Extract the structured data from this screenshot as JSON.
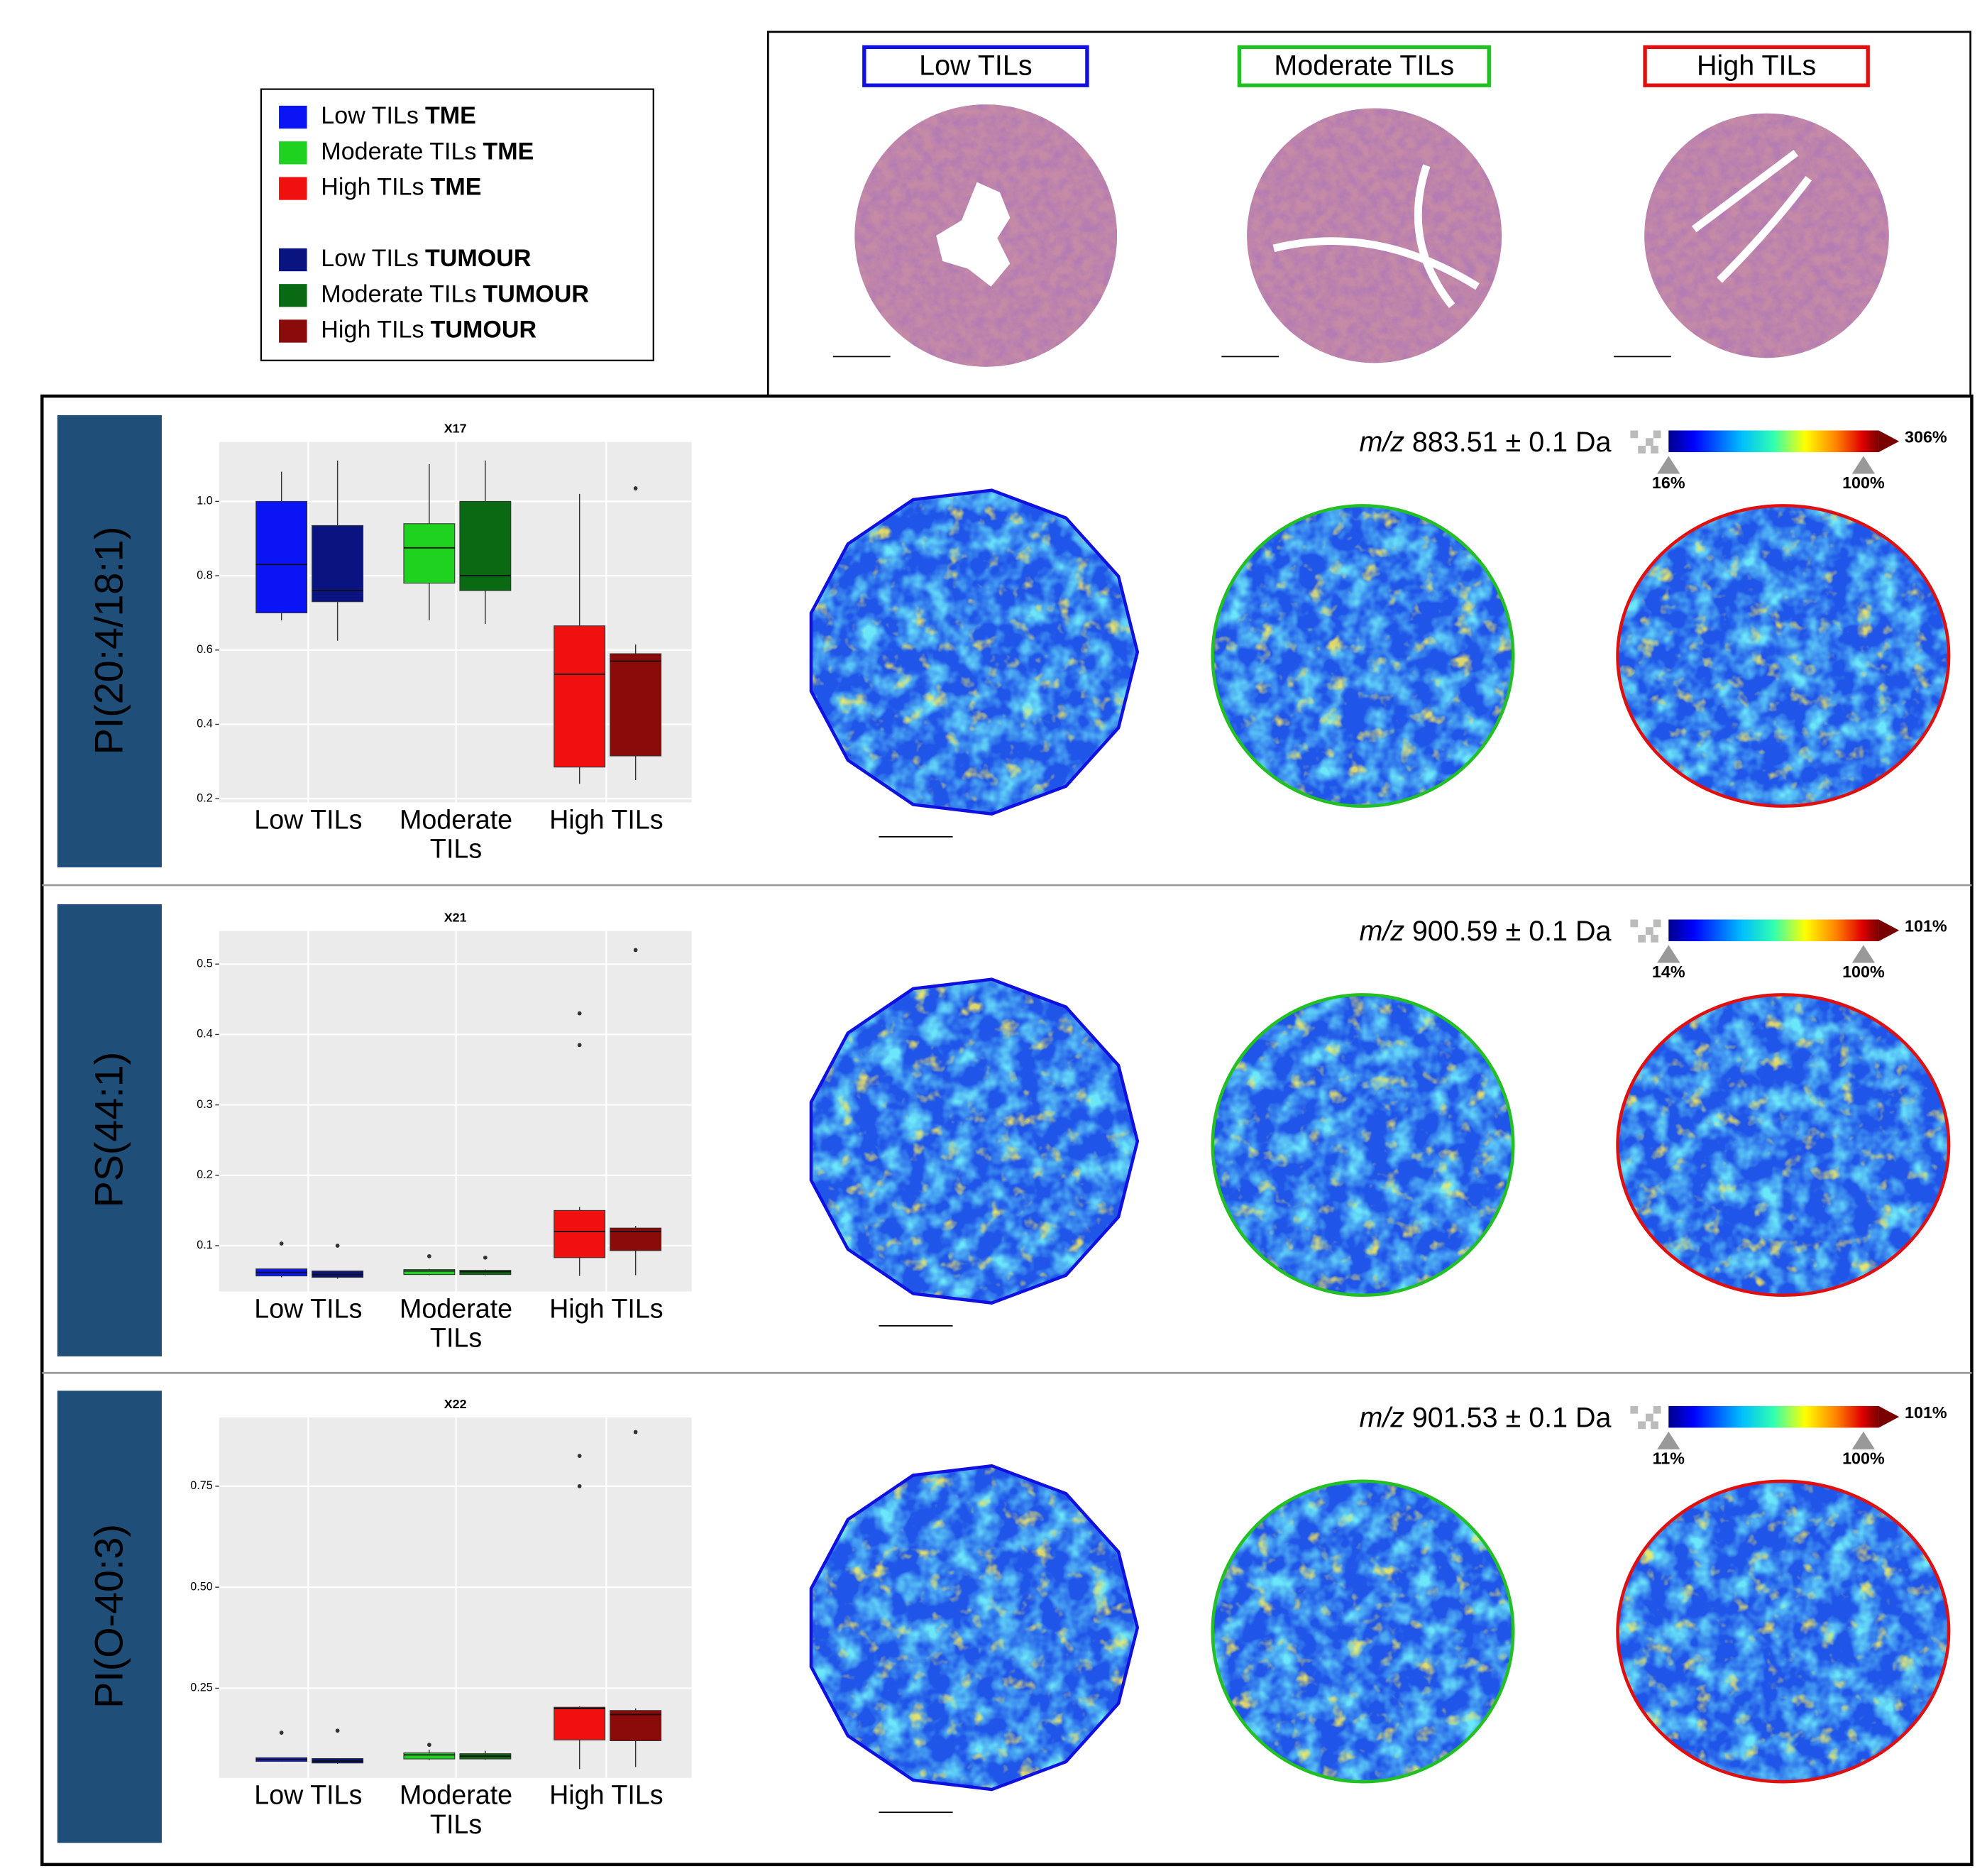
{
  "legend": {
    "entries": [
      {
        "label": "Low TILs",
        "group": "TME",
        "color": "#0a14f5"
      },
      {
        "label": "Moderate TILs",
        "group": "TME",
        "color": "#1fd21f"
      },
      {
        "label": "High TILs",
        "group": "TME",
        "color": "#f01010"
      },
      {
        "label": "Low TILs",
        "group": "TUMOUR",
        "color": "#0a1480"
      },
      {
        "label": "Moderate TILs",
        "group": "TUMOUR",
        "color": "#0a6a14"
      },
      {
        "label": "High TILs",
        "group": "TUMOUR",
        "color": "#8b0a0a"
      }
    ]
  },
  "histology": {
    "labels": [
      "Low TILs",
      "Moderate TILs",
      "High TILs"
    ],
    "colors": [
      "#1010e0",
      "#22c022",
      "#e01010"
    ]
  },
  "chart_data": [
    {
      "type": "box",
      "title": "X17",
      "row_label": "PI(20:4/18:1)",
      "mz": {
        "prefix": "m/z",
        "text": "883.51 ± 0.1 Da"
      },
      "colorbar": {
        "max_label": "306%",
        "low_label": "16%",
        "high_label": "100%"
      },
      "categories": [
        "Low TILs",
        "Moderate TILs",
        "High TILs"
      ],
      "ylim": [
        0.19,
        1.16
      ],
      "yticks": [
        0.2,
        0.4,
        0.6,
        0.8,
        {
          "value": 1,
          "label": "1.0"
        }
      ],
      "grid": true,
      "series": [
        {
          "colors": [
            "#0a14f5",
            "#1fd21f",
            "#f01010"
          ],
          "boxes": [
            {
              "min": 0.68,
              "q1": 0.7,
              "median": 0.83,
              "q3": 1.0,
              "max": 1.08,
              "outliers": []
            },
            {
              "min": 0.68,
              "q1": 0.78,
              "median": 0.875,
              "q3": 0.94,
              "max": 1.1,
              "outliers": []
            },
            {
              "min": 0.24,
              "q1": 0.285,
              "median": 0.535,
              "q3": 0.665,
              "max": 1.02,
              "outliers": []
            }
          ]
        },
        {
          "colors": [
            "#0a1480",
            "#0a6a14",
            "#8b0a0a"
          ],
          "boxes": [
            {
              "min": 0.625,
              "q1": 0.73,
              "median": 0.76,
              "q3": 0.935,
              "max": 1.11,
              "outliers": []
            },
            {
              "min": 0.67,
              "q1": 0.76,
              "median": 0.8,
              "q3": 1.0,
              "max": 1.11,
              "outliers": []
            },
            {
              "min": 0.25,
              "q1": 0.315,
              "median": 0.57,
              "q3": 0.59,
              "max": 0.615,
              "outliers": [
                1.035
              ]
            }
          ]
        }
      ]
    },
    {
      "type": "box",
      "title": "X21",
      "row_label": "PS(44:1)",
      "mz": {
        "prefix": "m/z",
        "text": "900.59 ± 0.1 Da"
      },
      "colorbar": {
        "max_label": "101%",
        "low_label": "14%",
        "high_label": "100%"
      },
      "categories": [
        "Low TILs",
        "Moderate TILs",
        "High TILs"
      ],
      "ylim": [
        0.035,
        0.547
      ],
      "yticks": [
        0.1,
        0.2,
        0.3,
        0.4,
        0.5
      ],
      "grid": true,
      "series": [
        {
          "colors": [
            "#0a14f5",
            "#1fd21f",
            "#f01010"
          ],
          "boxes": [
            {
              "min": 0.055,
              "q1": 0.057,
              "median": 0.062,
              "q3": 0.067,
              "max": 0.067,
              "outliers": [
                0.103
              ]
            },
            {
              "min": 0.058,
              "q1": 0.059,
              "median": 0.064,
              "q3": 0.066,
              "max": 0.067,
              "outliers": [
                0.085
              ]
            },
            {
              "min": 0.057,
              "q1": 0.083,
              "median": 0.12,
              "q3": 0.15,
              "max": 0.155,
              "outliers": [
                0.43,
                0.385
              ]
            }
          ]
        },
        {
          "colors": [
            "#0a1480",
            "#0a6a14",
            "#8b0a0a"
          ],
          "boxes": [
            {
              "min": 0.053,
              "q1": 0.055,
              "median": 0.059,
              "q3": 0.064,
              "max": 0.064,
              "outliers": [
                0.1
              ]
            },
            {
              "min": 0.058,
              "q1": 0.059,
              "median": 0.063,
              "q3": 0.065,
              "max": 0.066,
              "outliers": [
                0.083
              ]
            },
            {
              "min": 0.058,
              "q1": 0.093,
              "median": 0.12,
              "q3": 0.125,
              "max": 0.128,
              "outliers": [
                0.52
              ]
            }
          ]
        }
      ]
    },
    {
      "type": "box",
      "title": "X22",
      "row_label": "PI(O-40:3)",
      "mz": {
        "prefix": "m/z",
        "text": "901.53 ± 0.1 Da"
      },
      "colorbar": {
        "max_label": "101%",
        "low_label": "11%",
        "high_label": "100%"
      },
      "categories": [
        "Low TILs",
        "Moderate TILs",
        "High TILs"
      ],
      "ylim": [
        0.028,
        0.92
      ],
      "yticks": [
        0.25,
        {
          "value": 0.5,
          "label": "0.50"
        },
        0.75
      ],
      "grid": true,
      "series": [
        {
          "colors": [
            "#0a14f5",
            "#1fd21f",
            "#f01010"
          ],
          "boxes": [
            {
              "min": 0.068,
              "q1": 0.069,
              "median": 0.074,
              "q3": 0.078,
              "max": 0.078,
              "outliers": [
                0.14
              ]
            },
            {
              "min": 0.072,
              "q1": 0.075,
              "median": 0.085,
              "q3": 0.09,
              "max": 0.098,
              "outliers": [
                0.11
              ]
            },
            {
              "min": 0.05,
              "q1": 0.122,
              "median": 0.2,
              "q3": 0.203,
              "max": 0.205,
              "outliers": [
                0.825,
                0.75
              ]
            }
          ]
        },
        {
          "colors": [
            "#0a1480",
            "#0a6a14",
            "#8b0a0a"
          ],
          "boxes": [
            {
              "min": 0.063,
              "q1": 0.065,
              "median": 0.07,
              "q3": 0.076,
              "max": 0.077,
              "outliers": [
                0.145
              ]
            },
            {
              "min": 0.073,
              "q1": 0.075,
              "median": 0.082,
              "q3": 0.088,
              "max": 0.095,
              "outliers": []
            },
            {
              "min": 0.055,
              "q1": 0.12,
              "median": 0.185,
              "q3": 0.195,
              "max": 0.2,
              "outliers": [
                0.884
              ]
            }
          ]
        }
      ]
    }
  ]
}
